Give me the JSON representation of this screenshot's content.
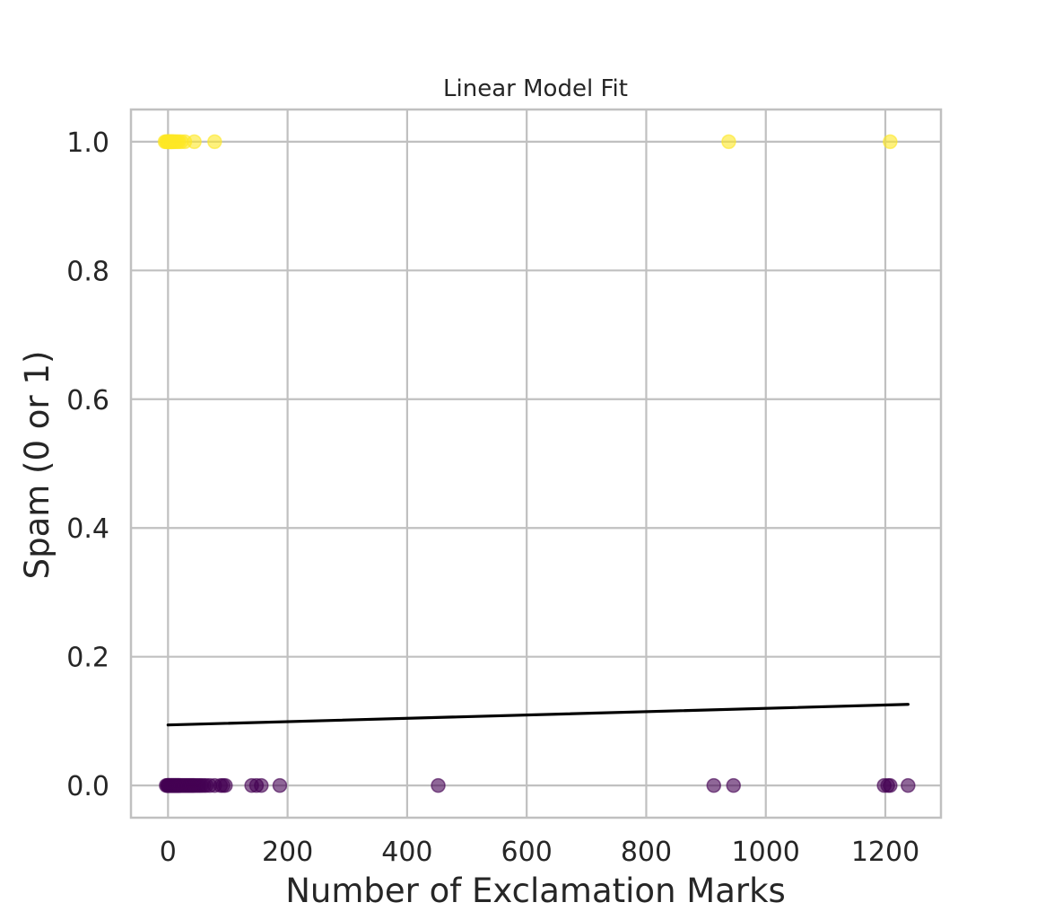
{
  "chart_data": {
    "type": "scatter",
    "title": "Linear Model Fit",
    "xlabel": "Number of Exclamation Marks",
    "ylabel": "Spam (0 or 1)",
    "xlim": [
      -62,
      1293
    ],
    "ylim": [
      -0.05,
      1.05
    ],
    "x_ticks": [
      0,
      200,
      400,
      600,
      800,
      1000,
      1200
    ],
    "x_tick_labels": [
      "0",
      "200",
      "400",
      "600",
      "800",
      "1000",
      "1200"
    ],
    "y_ticks": [
      0.0,
      0.2,
      0.4,
      0.6,
      0.8,
      1.0
    ],
    "y_tick_labels": [
      "0.0",
      "0.2",
      "0.4",
      "0.6",
      "0.8",
      "1.0"
    ],
    "grid": true,
    "colors": {
      "spam": "#fde725",
      "not_spam": "#440154",
      "fit_line": "#000000"
    },
    "point_opacity": 0.6,
    "series": [
      {
        "spam": 1,
        "x": [
          -5,
          -3,
          -2,
          0,
          0,
          1,
          2,
          3,
          4,
          5,
          6,
          7,
          8,
          10,
          12,
          15,
          18,
          22,
          28,
          44,
          78,
          938,
          1208
        ],
        "y": [
          1,
          1,
          1,
          1,
          1,
          1,
          1,
          1,
          1,
          1,
          1,
          1,
          1,
          1,
          1,
          1,
          1,
          1,
          1,
          1,
          1,
          1,
          1
        ]
      },
      {
        "spam": 0,
        "x": [
          -3,
          -1,
          0,
          0,
          1,
          2,
          3,
          4,
          5,
          6,
          7,
          8,
          9,
          10,
          11,
          12,
          13,
          14,
          15,
          16,
          17,
          18,
          19,
          20,
          22,
          24,
          26,
          28,
          30,
          32,
          34,
          36,
          38,
          40,
          42,
          44,
          47,
          50,
          53,
          56,
          60,
          64,
          70,
          78,
          88,
          92,
          96,
          140,
          148,
          156,
          187,
          452,
          913,
          946,
          1198,
          1204,
          1208,
          1238
        ],
        "y": [
          0,
          0,
          0,
          0,
          0,
          0,
          0,
          0,
          0,
          0,
          0,
          0,
          0,
          0,
          0,
          0,
          0,
          0,
          0,
          0,
          0,
          0,
          0,
          0,
          0,
          0,
          0,
          0,
          0,
          0,
          0,
          0,
          0,
          0,
          0,
          0,
          0,
          0,
          0,
          0,
          0,
          0,
          0,
          0,
          0,
          0,
          0,
          0,
          0,
          0,
          0,
          0,
          0,
          0,
          0,
          0,
          0,
          0
        ]
      }
    ],
    "fit_line": {
      "x": [
        0,
        1238
      ],
      "y": [
        0.094,
        0.126
      ]
    }
  }
}
